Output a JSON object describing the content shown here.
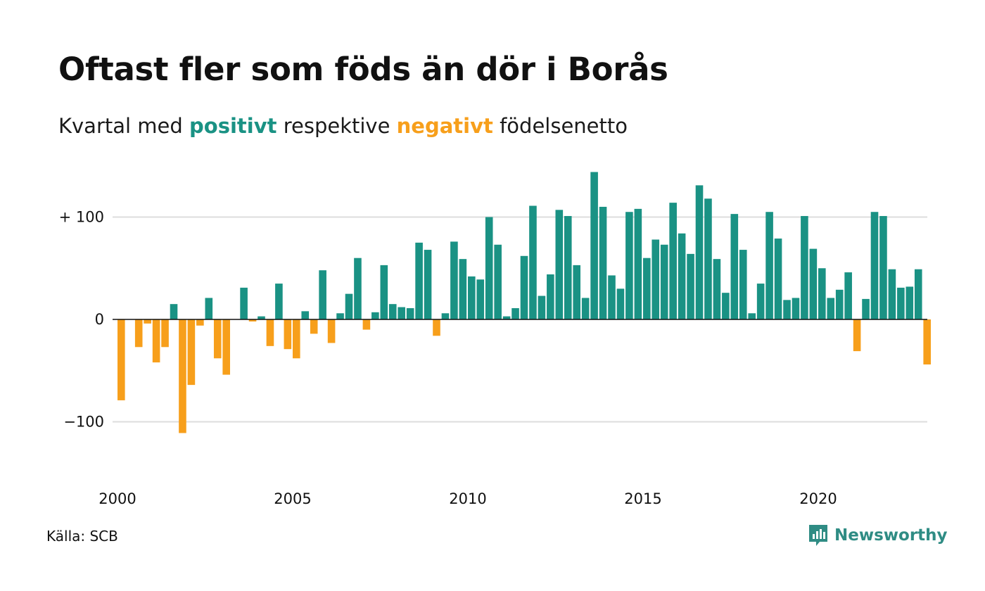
{
  "title": "Oftast fler som föds än dör i Borås",
  "subtitle": {
    "prefix": "Kvartal med",
    "positive_word": "positivt",
    "middle": "respektive",
    "negative_word": "negativt",
    "suffix": "födelsenetto"
  },
  "source": "Källa: SCB",
  "brand": {
    "name": "Newsworthy",
    "icon": "newsworthy-logo-icon"
  },
  "colors": {
    "positive": "#1a9284",
    "negative": "#f79f1b",
    "grid": "#dddddd",
    "baseline": "#111111"
  },
  "chart_data": {
    "type": "bar",
    "x_start": "2000 Q1",
    "frequency": "quarterly",
    "ylim": [
      -130,
      150
    ],
    "grid": true,
    "y_ticks": [
      {
        "value": 100,
        "label": "+ 100"
      },
      {
        "value": 0,
        "label": "0"
      },
      {
        "value": -100,
        "label": "−100"
      }
    ],
    "x_ticks": [
      {
        "year": 2000,
        "label": "2000"
      },
      {
        "year": 2005,
        "label": "2005"
      },
      {
        "year": 2010,
        "label": "2010"
      },
      {
        "year": 2015,
        "label": "2015"
      },
      {
        "year": 2020,
        "label": "2020"
      }
    ],
    "values": [
      -79,
      0,
      -27,
      -4,
      -42,
      -27,
      15,
      -111,
      -64,
      -6,
      21,
      -38,
      -54,
      0,
      31,
      -2,
      3,
      -26,
      35,
      -29,
      -38,
      8,
      -14,
      48,
      -23,
      6,
      25,
      60,
      -10,
      7,
      53,
      15,
      12,
      11,
      75,
      68,
      -16,
      6,
      76,
      59,
      42,
      39,
      100,
      73,
      3,
      11,
      62,
      111,
      23,
      44,
      107,
      101,
      53,
      21,
      144,
      110,
      43,
      30,
      105,
      108,
      60,
      78,
      73,
      114,
      84,
      64,
      131,
      118,
      59,
      26,
      103,
      68,
      6,
      35,
      105,
      79,
      19,
      21,
      101,
      69,
      50,
      21,
      29,
      46,
      -31,
      20,
      105,
      101,
      49,
      31,
      32,
      49,
      -44
    ]
  }
}
